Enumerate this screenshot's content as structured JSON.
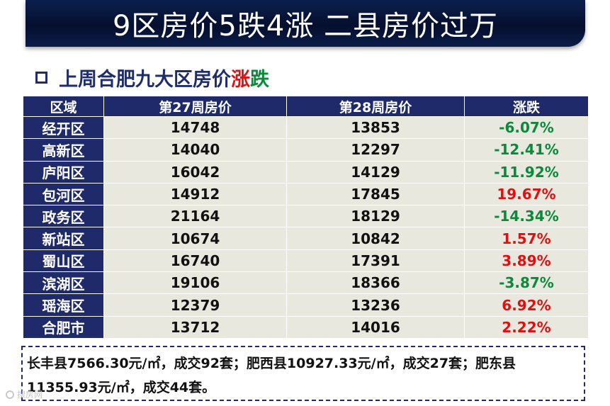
{
  "banner": {
    "title": "9区房价5跌4涨 二县房价过万"
  },
  "subtitle": {
    "text": "上周合肥九大区房价",
    "up": "涨",
    "down": "跌"
  },
  "table": {
    "headers": [
      "区域",
      "第27周房价",
      "第28周房价",
      "涨跌"
    ],
    "rows": [
      {
        "region": "经开区",
        "w27": "14748",
        "w28": "13853",
        "change": "-6.07%",
        "dir": "down"
      },
      {
        "region": "高新区",
        "w27": "14040",
        "w28": "12297",
        "change": "-12.41%",
        "dir": "down"
      },
      {
        "region": "庐阳区",
        "w27": "16042",
        "w28": "14129",
        "change": "-11.92%",
        "dir": "down"
      },
      {
        "region": "包河区",
        "w27": "14912",
        "w28": "17845",
        "change": "19.67%",
        "dir": "up"
      },
      {
        "region": "政务区",
        "w27": "21164",
        "w28": "18129",
        "change": "-14.34%",
        "dir": "down"
      },
      {
        "region": "新站区",
        "w27": "10674",
        "w28": "10842",
        "change": "1.57%",
        "dir": "up"
      },
      {
        "region": "蜀山区",
        "w27": "16740",
        "w28": "17391",
        "change": "3.89%",
        "dir": "up"
      },
      {
        "region": "滨湖区",
        "w27": "19106",
        "w28": "18366",
        "change": "-3.87%",
        "dir": "down"
      },
      {
        "region": "瑶海区",
        "w27": "12379",
        "w28": "13236",
        "change": "6.92%",
        "dir": "up"
      },
      {
        "region": "合肥市",
        "w27": "13712",
        "w28": "14016",
        "change": "2.22%",
        "dir": "up"
      }
    ]
  },
  "note": {
    "text": "长丰县7566.30元/㎡，成交92套；肥西县10927.33元/㎡，成交27套；肥东县11355.93元/㎡，成交44套。"
  },
  "watermark": {
    "text": "搜房网"
  },
  "colors": {
    "header_bg": "#1f2a6b",
    "cell_bg": "#e9e8df",
    "up": "#e01010",
    "down": "#0a8a3a"
  }
}
